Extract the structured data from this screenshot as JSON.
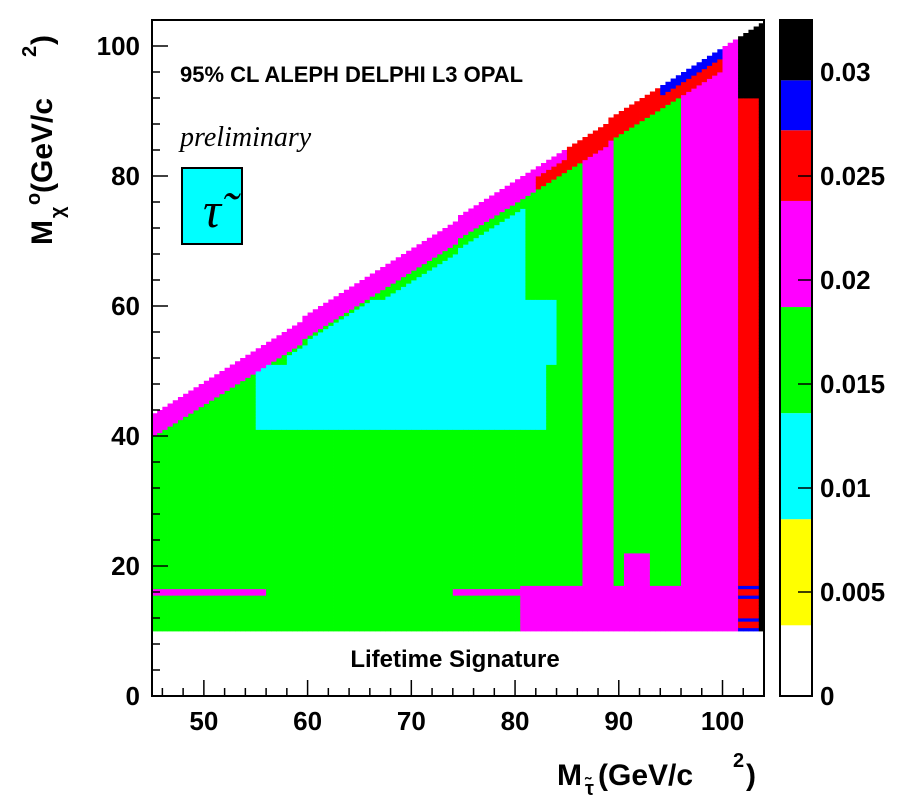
{
  "chart_data": {
    "type": "heatmap",
    "title": "95% CL  ALEPH DELPHI L3 OPAL",
    "subtitle": "preliminary",
    "particle_label": "τ̃",
    "band_label": "Lifetime Signature",
    "xlabel": {
      "main": "M",
      "sub": "τ̃",
      "units": "(GeV/c",
      "sup": "2",
      "close": ")"
    },
    "ylabel": {
      "main": "M",
      "sub": "χ",
      "sup0": "o",
      "units": "(GeV/c",
      "sup": "2",
      "close": ")"
    },
    "xlim": [
      45,
      104
    ],
    "ylim": [
      0,
      104
    ],
    "x_ticks": [
      "50",
      "60",
      "70",
      "80",
      "90",
      "100"
    ],
    "y_ticks": [
      "0",
      "20",
      "40",
      "60",
      "80",
      "100"
    ],
    "colorbar": {
      "range": [
        0,
        0.0325
      ],
      "tick_labels": [
        "0",
        "0.005",
        "0.01",
        "0.015",
        "0.02",
        "0.025",
        "0.03"
      ],
      "levels": [
        {
          "from": 0.0,
          "to": 0.0034,
          "color": "#ffffff"
        },
        {
          "from": 0.0034,
          "to": 0.0085,
          "color": "#ffff00"
        },
        {
          "from": 0.0085,
          "to": 0.0136,
          "color": "#00ffff"
        },
        {
          "from": 0.0136,
          "to": 0.0187,
          "color": "#00ff00"
        },
        {
          "from": 0.0187,
          "to": 0.0238,
          "color": "#ff00ff"
        },
        {
          "from": 0.0238,
          "to": 0.0272,
          "color": "#ff0000"
        },
        {
          "from": 0.0272,
          "to": 0.0296,
          "color": "#0000ff"
        },
        {
          "from": 0.0296,
          "to": 0.0325,
          "color": "#000000"
        }
      ]
    },
    "region": {
      "lifetime_band_ymax": 10,
      "kinematic_limit": "y < x",
      "start_edge": [
        45,
        43
      ]
    }
  }
}
